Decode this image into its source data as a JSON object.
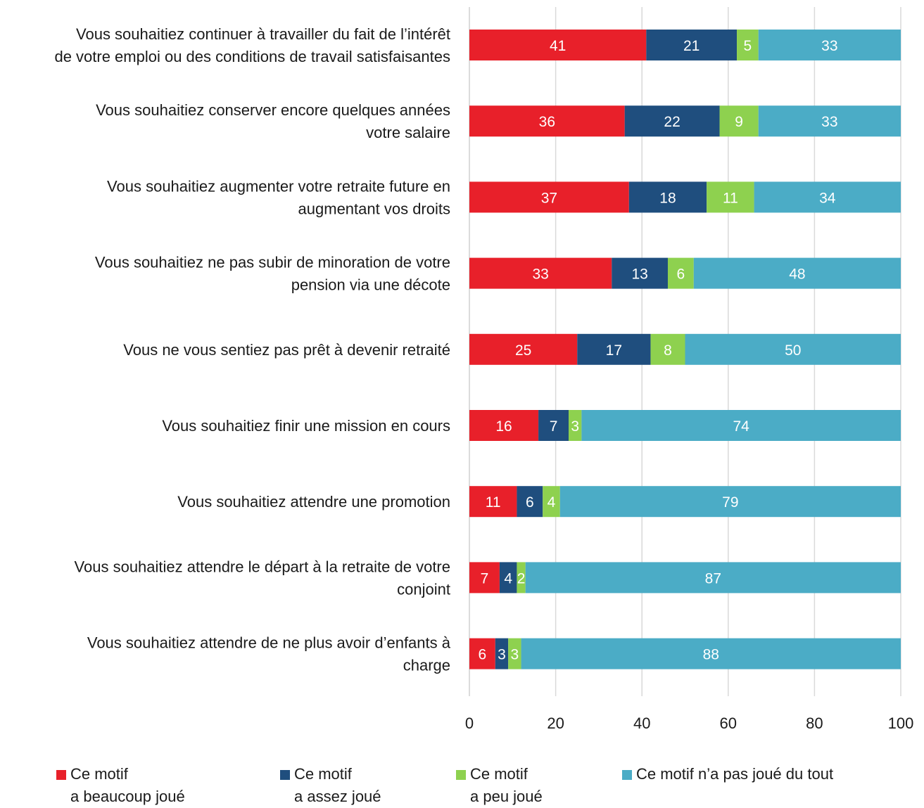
{
  "chart_data": {
    "type": "bar",
    "orientation": "horizontal",
    "stacked": true,
    "categories": [
      "Vous souhaitiez continuer à travailler du fait de l’intérêt\nde votre emploi ou des conditions de travail satisfaisantes",
      "Vous souhaitiez conserver encore quelques années\nvotre salaire",
      "Vous souhaitiez augmenter votre retraite future en\naugmentant vos droits",
      "Vous souhaitiez ne pas subir de minoration de votre\npension via une décote",
      "Vous ne vous sentiez pas prêt à devenir retraité",
      "Vous souhaitiez finir une mission en cours",
      "Vous souhaitiez attendre une promotion",
      "Vous souhaitiez attendre le départ à la retraite de votre\nconjoint",
      "Vous souhaitiez attendre de ne plus avoir d’enfants à\ncharge"
    ],
    "series": [
      {
        "name": "Ce motif\na beaucoup joué",
        "color": "#e8202a",
        "values": [
          41,
          36,
          37,
          33,
          25,
          16,
          11,
          7,
          6
        ]
      },
      {
        "name": "Ce motif\na assez joué",
        "color": "#1f4e7e",
        "values": [
          21,
          22,
          18,
          13,
          17,
          7,
          6,
          4,
          3
        ]
      },
      {
        "name": "Ce motif\na peu joué",
        "color": "#8ed14f",
        "values": [
          5,
          9,
          11,
          6,
          8,
          3,
          4,
          2,
          3
        ]
      },
      {
        "name": "Ce motif n’a pas joué du tout",
        "color": "#4bacc6",
        "values": [
          33,
          33,
          34,
          48,
          50,
          74,
          79,
          87,
          88
        ]
      }
    ],
    "xlim": [
      0,
      100
    ],
    "xticks": [
      0,
      20,
      40,
      60,
      80,
      100
    ],
    "grid": true,
    "legend_position": "bottom"
  }
}
